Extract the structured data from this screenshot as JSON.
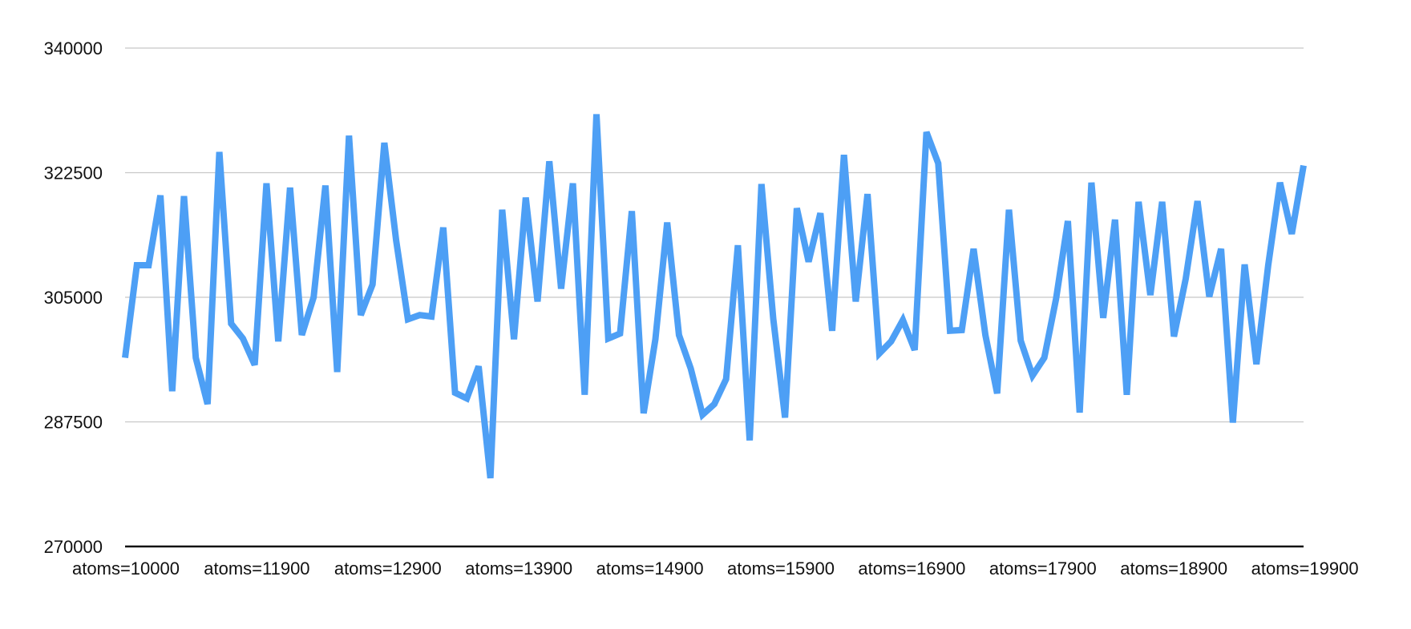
{
  "chart_data": {
    "type": "line",
    "title": "",
    "xlabel": "",
    "ylabel": "",
    "ylim": [
      270000,
      340000
    ],
    "yticks": [
      "340000",
      "322500",
      "305000",
      "287500",
      "270000"
    ],
    "ytick_values": [
      340000,
      322500,
      305000,
      287500,
      270000
    ],
    "x_labels_shown": [
      "atoms=10000",
      "atoms=11900",
      "atoms=12900",
      "atoms=13900",
      "atoms=14900",
      "atoms=15900",
      "atoms=16900",
      "atoms=17900",
      "atoms=18900",
      "atoms=19900"
    ],
    "grid": true,
    "legend": "none",
    "series": [
      {
        "color": "#4d9ff5",
        "values": [
          296500,
          309500,
          309500,
          319300,
          291800,
          319200,
          296500,
          290000,
          325400,
          301300,
          299200,
          295500,
          321000,
          298800,
          320400,
          299700,
          305000,
          320700,
          294500,
          327700,
          302500,
          306800,
          326700,
          313000,
          301900,
          302500,
          302300,
          314800,
          291600,
          290800,
          295300,
          279600,
          317300,
          299100,
          319000,
          304400,
          324100,
          306200,
          321000,
          291300,
          330700,
          299200,
          299900,
          317100,
          288700,
          299100,
          315500,
          299700,
          295000,
          288500,
          290000,
          293500,
          312300,
          284900,
          320900,
          302000,
          288100,
          317500,
          310000,
          316800,
          300300,
          325000,
          304400,
          319500,
          297100,
          298800,
          301800,
          297600,
          328200,
          323800,
          300300,
          300400,
          311800,
          299700,
          291500,
          317300,
          298900,
          294000,
          296500,
          304800,
          315700,
          288800,
          321100,
          302100,
          315900,
          291300,
          318400,
          305300,
          318400,
          299500,
          307600,
          318500,
          305100,
          311800,
          287400,
          309600,
          295600,
          309500,
          321100,
          313900,
          323500
        ]
      }
    ]
  }
}
